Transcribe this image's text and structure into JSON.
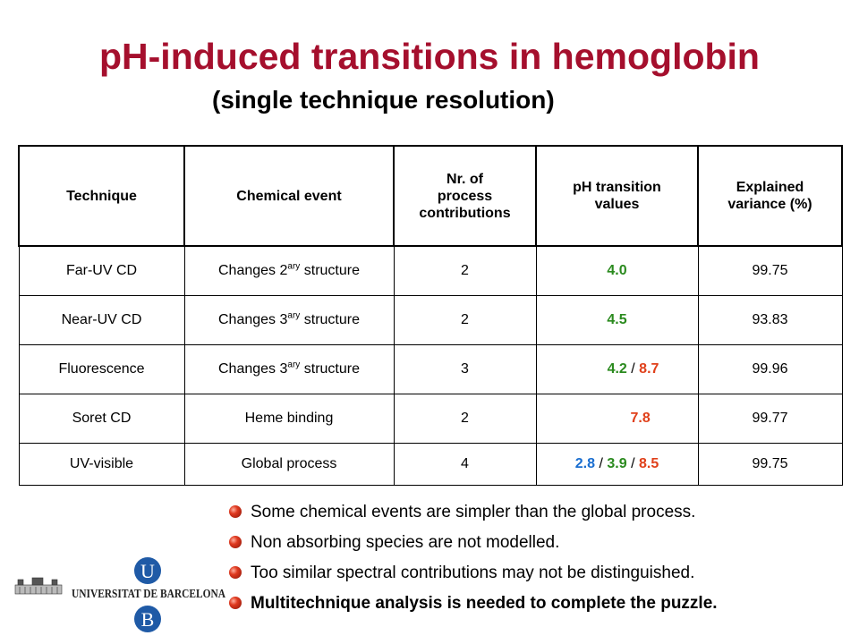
{
  "slide": {
    "title": "pH-induced transitions in hemoglobin",
    "subtitle": "(single technique resolution)"
  },
  "table": {
    "headers": {
      "technique": "Technique",
      "chemical_event": "Chemical event",
      "nr_line1": "Nr. of",
      "nr_line2": "process",
      "nr_line3": "contributions",
      "ph_line1": "pH transition",
      "ph_line2": "values",
      "var_line1": "Explained",
      "var_line2": "variance (%)"
    },
    "rows": [
      {
        "technique": "Far-UV CD",
        "event_pre": "Changes 2",
        "event_sup": "ary",
        "event_post": " structure",
        "nr": "2",
        "ph": [
          "4.0"
        ],
        "variance": "99.75"
      },
      {
        "technique": "Near-UV CD",
        "event_pre": "Changes 3",
        "event_sup": "ary",
        "event_post": " structure",
        "nr": "2",
        "ph": [
          "4.5"
        ],
        "variance": "93.83"
      },
      {
        "technique": "Fluorescence",
        "event_pre": "Changes 3",
        "event_sup": "ary",
        "event_post": " structure",
        "nr": "3",
        "ph": [
          "4.2",
          "8.7"
        ],
        "variance": "99.96"
      },
      {
        "technique": "Soret CD",
        "event_pre": "Heme binding",
        "event_sup": "",
        "event_post": "",
        "nr": "2",
        "ph": [
          "7.8"
        ],
        "variance": "99.77"
      },
      {
        "technique": "UV-visible",
        "event_pre": "Global process",
        "event_sup": "",
        "event_post": "",
        "nr": "4",
        "ph": [
          "2.8",
          "3.9",
          "8.5"
        ],
        "variance": "99.75"
      }
    ],
    "separator": " / "
  },
  "colors": {
    "title": "#a50f2d",
    "ph_green": "#2a8a1e",
    "ph_red": "#e0401a",
    "ph_blue": "#1a6ed0",
    "logo_blue": "#1f5aa6"
  },
  "bullets": [
    "Some chemical events are simpler than the global process.",
    "Non absorbing species are not modelled.",
    "Too similar spectral contributions may not be distinguished.",
    "Multitechnique analysis is needed to complete the puzzle."
  ],
  "logo": {
    "text": "UNIVERSITAT DE BARCELONA",
    "letter_top": "U",
    "letter_bottom": "B",
    "icon": "university-building-icon"
  }
}
